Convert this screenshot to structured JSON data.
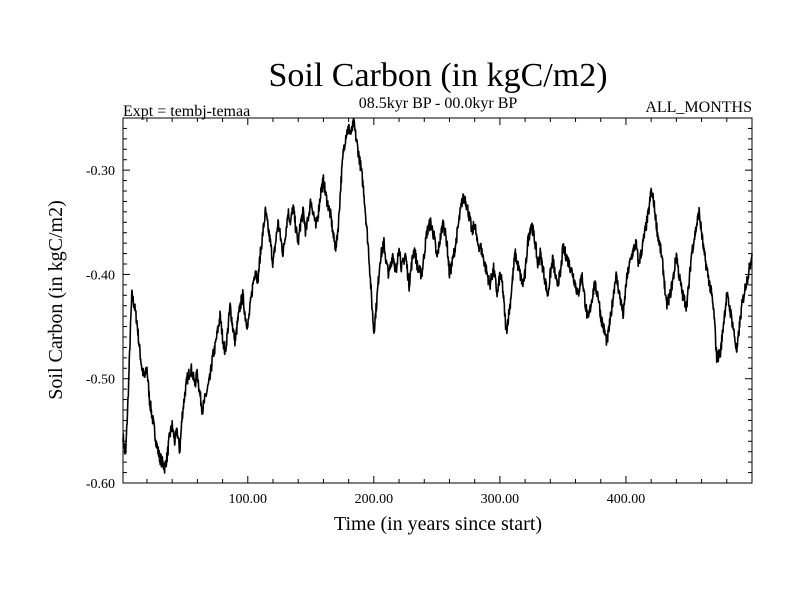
{
  "chart_data": {
    "type": "line",
    "title": "Soil Carbon (in kgC/m2)",
    "subtitle_left": "Expt = tembj-temaa",
    "subtitle_center": "08.5kyr BP - 00.0kyr BP",
    "subtitle_right": "ALL_MONTHS",
    "xlabel": "Time (in years since start)",
    "ylabel": "Soil Carbon (in kgC/m2)",
    "xlim": [
      1,
      500
    ],
    "ylim": [
      -0.6,
      -0.25
    ],
    "grid": false,
    "legend": "none",
    "x_ticks": [
      100,
      200,
      300,
      400
    ],
    "x_tick_labels": [
      "100.00",
      "200.00",
      "300.00",
      "400.00"
    ],
    "y_ticks": [
      -0.6,
      -0.5,
      -0.4,
      -0.3
    ],
    "y_tick_labels": [
      "-0.60",
      "-0.50",
      "-0.40",
      "-0.30"
    ],
    "series": [
      {
        "name": "Soil Carbon",
        "color": "#000000",
        "x": [
          1,
          3,
          5,
          7,
          8,
          10,
          12,
          14,
          16,
          18,
          20,
          22,
          24,
          26,
          28,
          30,
          32,
          34,
          36,
          38,
          40,
          42,
          44,
          46,
          48,
          50,
          52,
          55,
          58,
          60,
          62,
          64,
          66,
          68,
          70,
          72,
          74,
          76,
          78,
          80,
          82,
          84,
          86,
          88,
          90,
          92,
          94,
          96,
          98,
          100,
          102,
          104,
          106,
          108,
          110,
          112,
          114,
          116,
          118,
          120,
          122,
          124,
          126,
          128,
          130,
          132,
          134,
          136,
          138,
          140,
          142,
          144,
          146,
          148,
          150,
          152,
          154,
          156,
          158,
          160,
          162,
          164,
          166,
          168,
          170,
          172,
          174,
          176,
          178,
          180,
          182,
          184,
          186,
          188,
          190,
          192,
          194,
          196,
          198,
          200,
          202,
          205,
          208,
          210,
          212,
          215,
          218,
          220,
          222,
          225,
          228,
          230,
          232,
          235,
          238,
          240,
          242,
          245,
          248,
          250,
          252,
          255,
          258,
          260,
          262,
          265,
          268,
          270,
          272,
          275,
          278,
          280,
          282,
          285,
          288,
          290,
          292,
          295,
          298,
          300,
          302,
          305,
          308,
          310,
          312,
          315,
          318,
          320,
          322,
          325,
          328,
          330,
          332,
          335,
          338,
          340,
          342,
          345,
          348,
          350,
          352,
          355,
          358,
          360,
          362,
          365,
          368,
          370,
          372,
          375,
          378,
          380,
          382,
          385,
          388,
          390,
          392,
          395,
          398,
          400,
          402,
          405,
          408,
          410,
          412,
          415,
          418,
          420,
          422,
          425,
          428,
          430,
          432,
          435,
          438,
          440,
          442,
          445,
          448,
          450,
          452,
          455,
          458,
          460,
          462,
          465,
          468,
          470,
          472,
          475,
          478,
          480,
          482,
          485,
          488,
          490,
          492,
          495,
          498,
          500
        ],
        "values": [
          -0.555,
          -0.575,
          -0.52,
          -0.45,
          -0.42,
          -0.43,
          -0.445,
          -0.47,
          -0.49,
          -0.5,
          -0.49,
          -0.52,
          -0.535,
          -0.55,
          -0.565,
          -0.575,
          -0.58,
          -0.585,
          -0.575,
          -0.555,
          -0.545,
          -0.56,
          -0.55,
          -0.57,
          -0.535,
          -0.515,
          -0.5,
          -0.49,
          -0.505,
          -0.495,
          -0.515,
          -0.53,
          -0.52,
          -0.51,
          -0.5,
          -0.48,
          -0.47,
          -0.455,
          -0.44,
          -0.46,
          -0.475,
          -0.455,
          -0.43,
          -0.45,
          -0.465,
          -0.445,
          -0.43,
          -0.42,
          -0.44,
          -0.45,
          -0.43,
          -0.41,
          -0.395,
          -0.405,
          -0.38,
          -0.36,
          -0.34,
          -0.355,
          -0.37,
          -0.39,
          -0.37,
          -0.35,
          -0.365,
          -0.38,
          -0.36,
          -0.34,
          -0.35,
          -0.335,
          -0.355,
          -0.37,
          -0.35,
          -0.34,
          -0.36,
          -0.345,
          -0.33,
          -0.34,
          -0.355,
          -0.34,
          -0.32,
          -0.31,
          -0.325,
          -0.335,
          -0.345,
          -0.365,
          -0.375,
          -0.35,
          -0.31,
          -0.28,
          -0.265,
          -0.26,
          -0.265,
          -0.255,
          -0.27,
          -0.285,
          -0.3,
          -0.32,
          -0.35,
          -0.38,
          -0.42,
          -0.455,
          -0.43,
          -0.385,
          -0.37,
          -0.39,
          -0.4,
          -0.38,
          -0.4,
          -0.37,
          -0.395,
          -0.38,
          -0.41,
          -0.39,
          -0.375,
          -0.395,
          -0.4,
          -0.38,
          -0.36,
          -0.35,
          -0.365,
          -0.385,
          -0.37,
          -0.35,
          -0.37,
          -0.4,
          -0.39,
          -0.37,
          -0.345,
          -0.33,
          -0.325,
          -0.34,
          -0.36,
          -0.35,
          -0.37,
          -0.375,
          -0.39,
          -0.4,
          -0.41,
          -0.395,
          -0.42,
          -0.4,
          -0.41,
          -0.455,
          -0.43,
          -0.405,
          -0.38,
          -0.395,
          -0.41,
          -0.4,
          -0.37,
          -0.35,
          -0.37,
          -0.39,
          -0.38,
          -0.4,
          -0.42,
          -0.4,
          -0.385,
          -0.41,
          -0.4,
          -0.375,
          -0.38,
          -0.39,
          -0.4,
          -0.41,
          -0.42,
          -0.4,
          -0.43,
          -0.445,
          -0.43,
          -0.41,
          -0.42,
          -0.44,
          -0.45,
          -0.465,
          -0.44,
          -0.42,
          -0.4,
          -0.42,
          -0.44,
          -0.41,
          -0.395,
          -0.38,
          -0.37,
          -0.39,
          -0.38,
          -0.36,
          -0.34,
          -0.32,
          -0.33,
          -0.36,
          -0.38,
          -0.4,
          -0.43,
          -0.42,
          -0.4,
          -0.38,
          -0.4,
          -0.42,
          -0.43,
          -0.41,
          -0.38,
          -0.36,
          -0.34,
          -0.36,
          -0.38,
          -0.4,
          -0.42,
          -0.44,
          -0.48,
          -0.475,
          -0.44,
          -0.42,
          -0.43,
          -0.45,
          -0.475,
          -0.45,
          -0.43,
          -0.41,
          -0.395,
          -0.38
        ]
      }
    ]
  }
}
